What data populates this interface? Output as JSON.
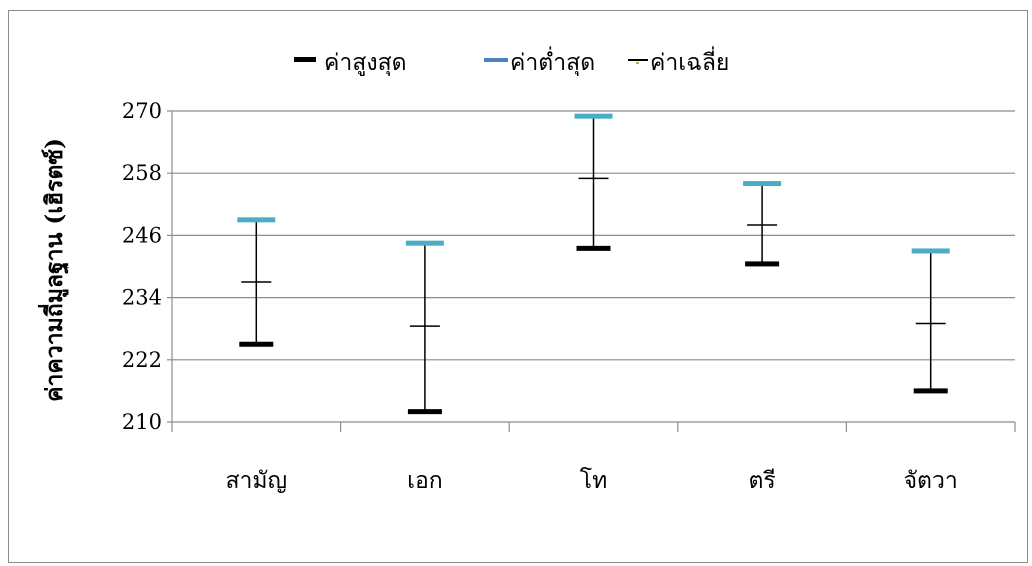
{
  "chart_data": {
    "type": "error-bar",
    "title": "",
    "xlabel": "",
    "ylabel": "ค่าความถี่มูลฐาน (เฮิรตซ์)",
    "ylim": [
      210,
      270
    ],
    "yticks": [
      210,
      222,
      234,
      246,
      258,
      270
    ],
    "grid": true,
    "legend_position": "top",
    "categories": [
      "สามัญ",
      "เอก",
      "โท",
      "ตรี",
      "จัตวา"
    ],
    "series": [
      {
        "name": "ค่าสูงสุด",
        "color": "#000000",
        "values": [
          225,
          212,
          243.5,
          240.5,
          216
        ]
      },
      {
        "name": "ค่าต่ำสุด",
        "color": "#4bacc6",
        "values": [
          249,
          244.5,
          269,
          256,
          243
        ]
      },
      {
        "name": "ค่าเฉลี่ย",
        "color": "#000000",
        "values": [
          237,
          228.5,
          257,
          248,
          229
        ]
      }
    ]
  }
}
